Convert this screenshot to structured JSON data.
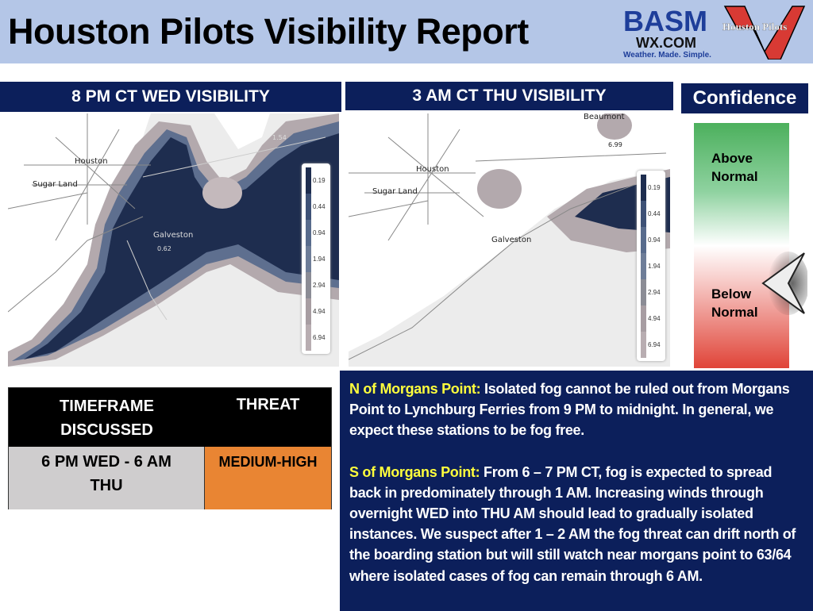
{
  "header": {
    "title": "Houston Pilots Visibility Report",
    "logos": {
      "basm": [
        "BASM",
        "WX.COM",
        "Weather. Made. Simple."
      ],
      "houston_pilots": "Houston Pilots"
    }
  },
  "maps": [
    {
      "title": "8 PM CT WED VISIBILITY",
      "labels": {
        "houston": "Houston",
        "sugar_land": "Sugar Land",
        "galveston": "Galveston"
      },
      "point_values": [
        "0.62",
        "1.54"
      ]
    },
    {
      "title": "3 AM CT THU VISIBILITY",
      "labels": {
        "houston": "Houston",
        "sugar_land": "Sugar Land",
        "galveston": "Galveston",
        "beaumont": "Beaumont"
      },
      "point_values": [
        "6.99"
      ]
    }
  ],
  "legend": {
    "values": [
      "0.19",
      "0.44",
      "0.94",
      "1.94",
      "2.94",
      "4.94",
      "6.94"
    ],
    "colors": [
      "#1e2d4f",
      "#3e5176",
      "#586b8c",
      "#6e7d98",
      "#8b8c95",
      "#a79da2",
      "#b8adb1"
    ]
  },
  "confidence": {
    "title": "Confidence",
    "above": "Above Normal",
    "below": "Below Normal",
    "selected": "Below Normal"
  },
  "table": {
    "headers": [
      "TIMEFRAME DISCUSSED",
      "THREAT"
    ],
    "timeframe": "6 PM WED - 6 AM THU",
    "threat": "MEDIUM-HIGH",
    "threat_color": "#e98533"
  },
  "discussion": [
    {
      "label": "N of Morgans Point:",
      "text": " Isolated fog cannot be ruled out from Morgans Point to Lynchburg Ferries from 9 PM to midnight. In general, we expect these stations to be fog free."
    },
    {
      "label": "S of Morgans Point:",
      "text": " From 6 – 7 PM CT, fog is expected to spread back in predominately through 1 AM.  Increasing winds through overnight WED into THU AM should lead to gradually isolated instances.  We suspect after 1 – 2 AM the fog threat can drift north of the boarding station but will still watch near morgans point to 63/64 where isolated cases of fog can remain through 6 AM."
    }
  ]
}
